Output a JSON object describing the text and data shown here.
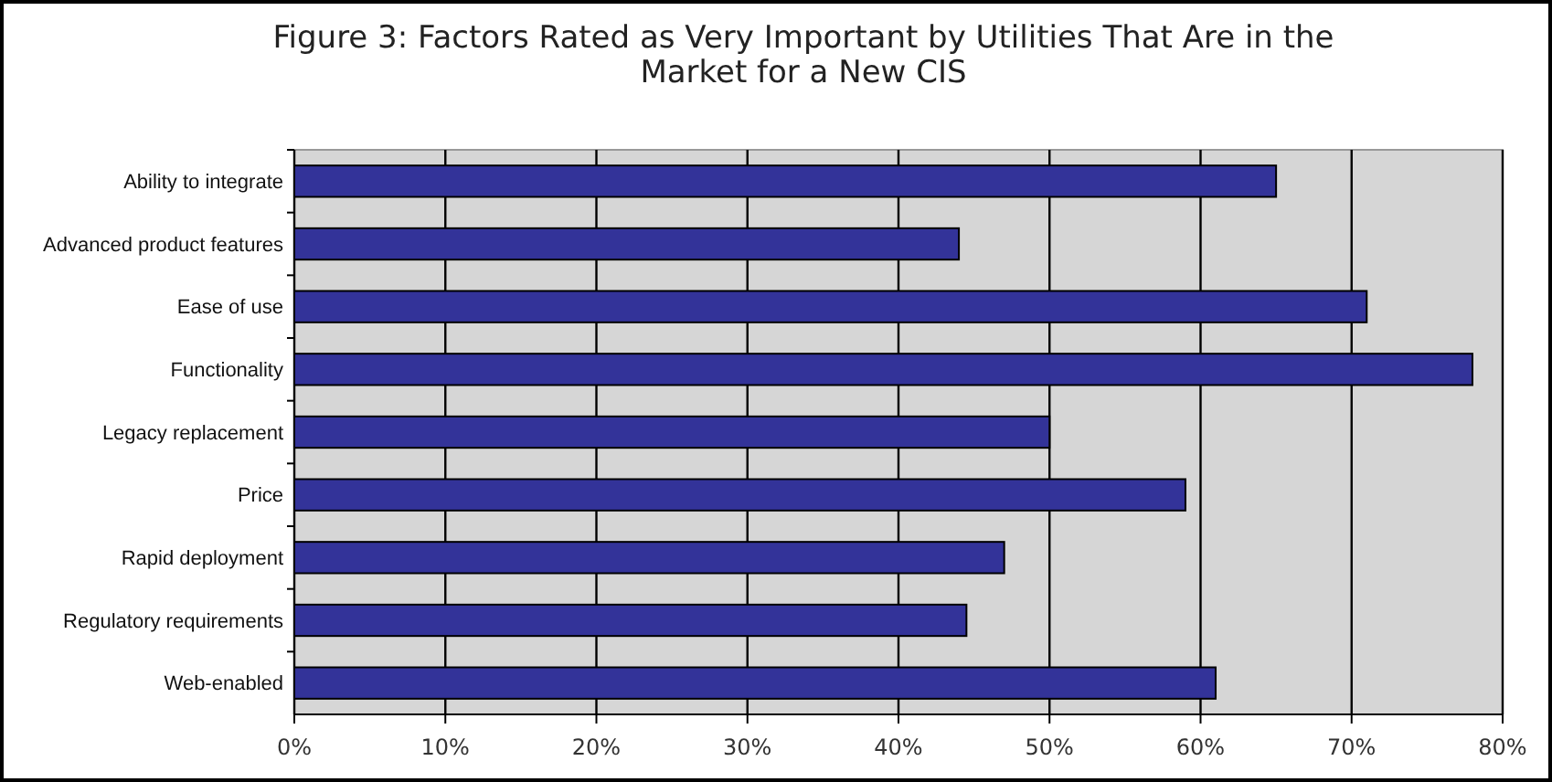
{
  "chart_data": {
    "type": "bar",
    "orientation": "horizontal",
    "title": "Figure 3: Factors Rated as Very Important by Utilities That Are in the Market for a New CIS",
    "categories": [
      "Ability to integrate",
      "Advanced product features",
      "Ease of use",
      "Functionality",
      "Legacy replacement",
      "Price",
      "Rapid deployment",
      "Regulatory requirements",
      "Web-enabled"
    ],
    "values": [
      65,
      44,
      71,
      78,
      50,
      59,
      47,
      44.5,
      61
    ],
    "color": "#333399",
    "xlim": [
      0,
      80
    ],
    "xticks": [
      {
        "value": 0,
        "label": "0%"
      },
      {
        "value": 10,
        "label": "10%"
      },
      {
        "value": 20,
        "label": "20%"
      },
      {
        "value": 30,
        "label": "30%"
      },
      {
        "value": 40,
        "label": "40%"
      },
      {
        "value": 50,
        "label": "50%"
      },
      {
        "value": 60,
        "label": "60%"
      },
      {
        "value": 70,
        "label": "70%"
      },
      {
        "value": 80,
        "label": "80%"
      }
    ],
    "grid": "x"
  }
}
